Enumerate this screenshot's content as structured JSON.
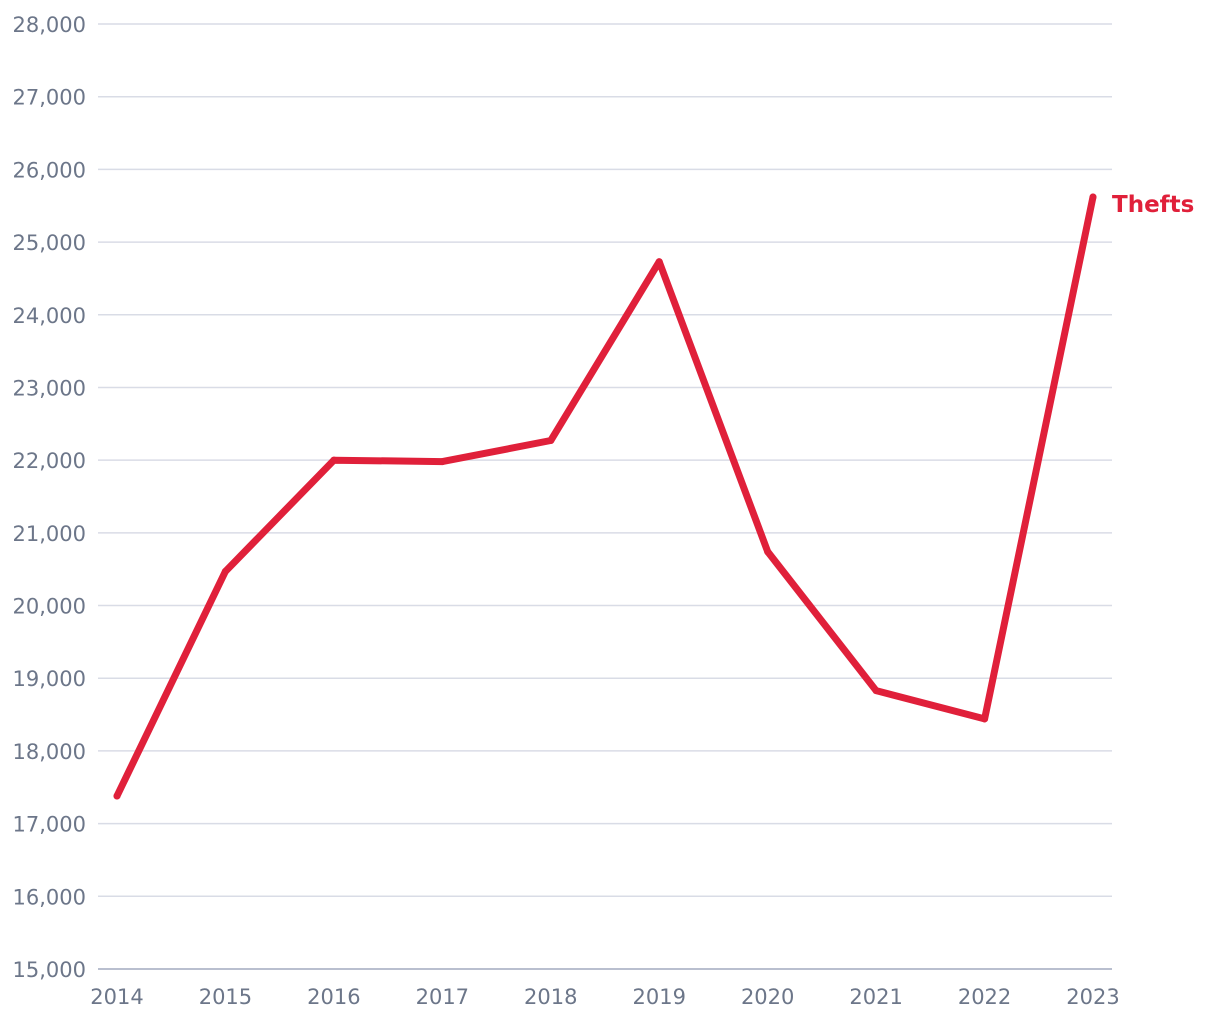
{
  "chart_data": {
    "type": "line",
    "title": "",
    "xlabel": "",
    "ylabel": "",
    "categories": [
      "2014",
      "2015",
      "2016",
      "2017",
      "2018",
      "2019",
      "2020",
      "2021",
      "2022",
      "2023"
    ],
    "ylim": [
      15000,
      28000
    ],
    "yticks": [
      15000,
      16000,
      17000,
      18000,
      19000,
      20000,
      21000,
      22000,
      23000,
      24000,
      25000,
      26000,
      27000,
      28000
    ],
    "ytick_labels": [
      "15,000",
      "16,000",
      "17,000",
      "18,000",
      "19,000",
      "20,000",
      "21,000",
      "22,000",
      "23,000",
      "24,000",
      "25,000",
      "26,000",
      "27,000",
      "28,000"
    ],
    "grid": "horizontal",
    "legend": "end-of-line label",
    "series": [
      {
        "name": "Thefts",
        "color": "#e0203a",
        "values": [
          17380,
          20470,
          22000,
          21980,
          22270,
          24730,
          20740,
          18830,
          18440,
          25620
        ]
      }
    ]
  }
}
